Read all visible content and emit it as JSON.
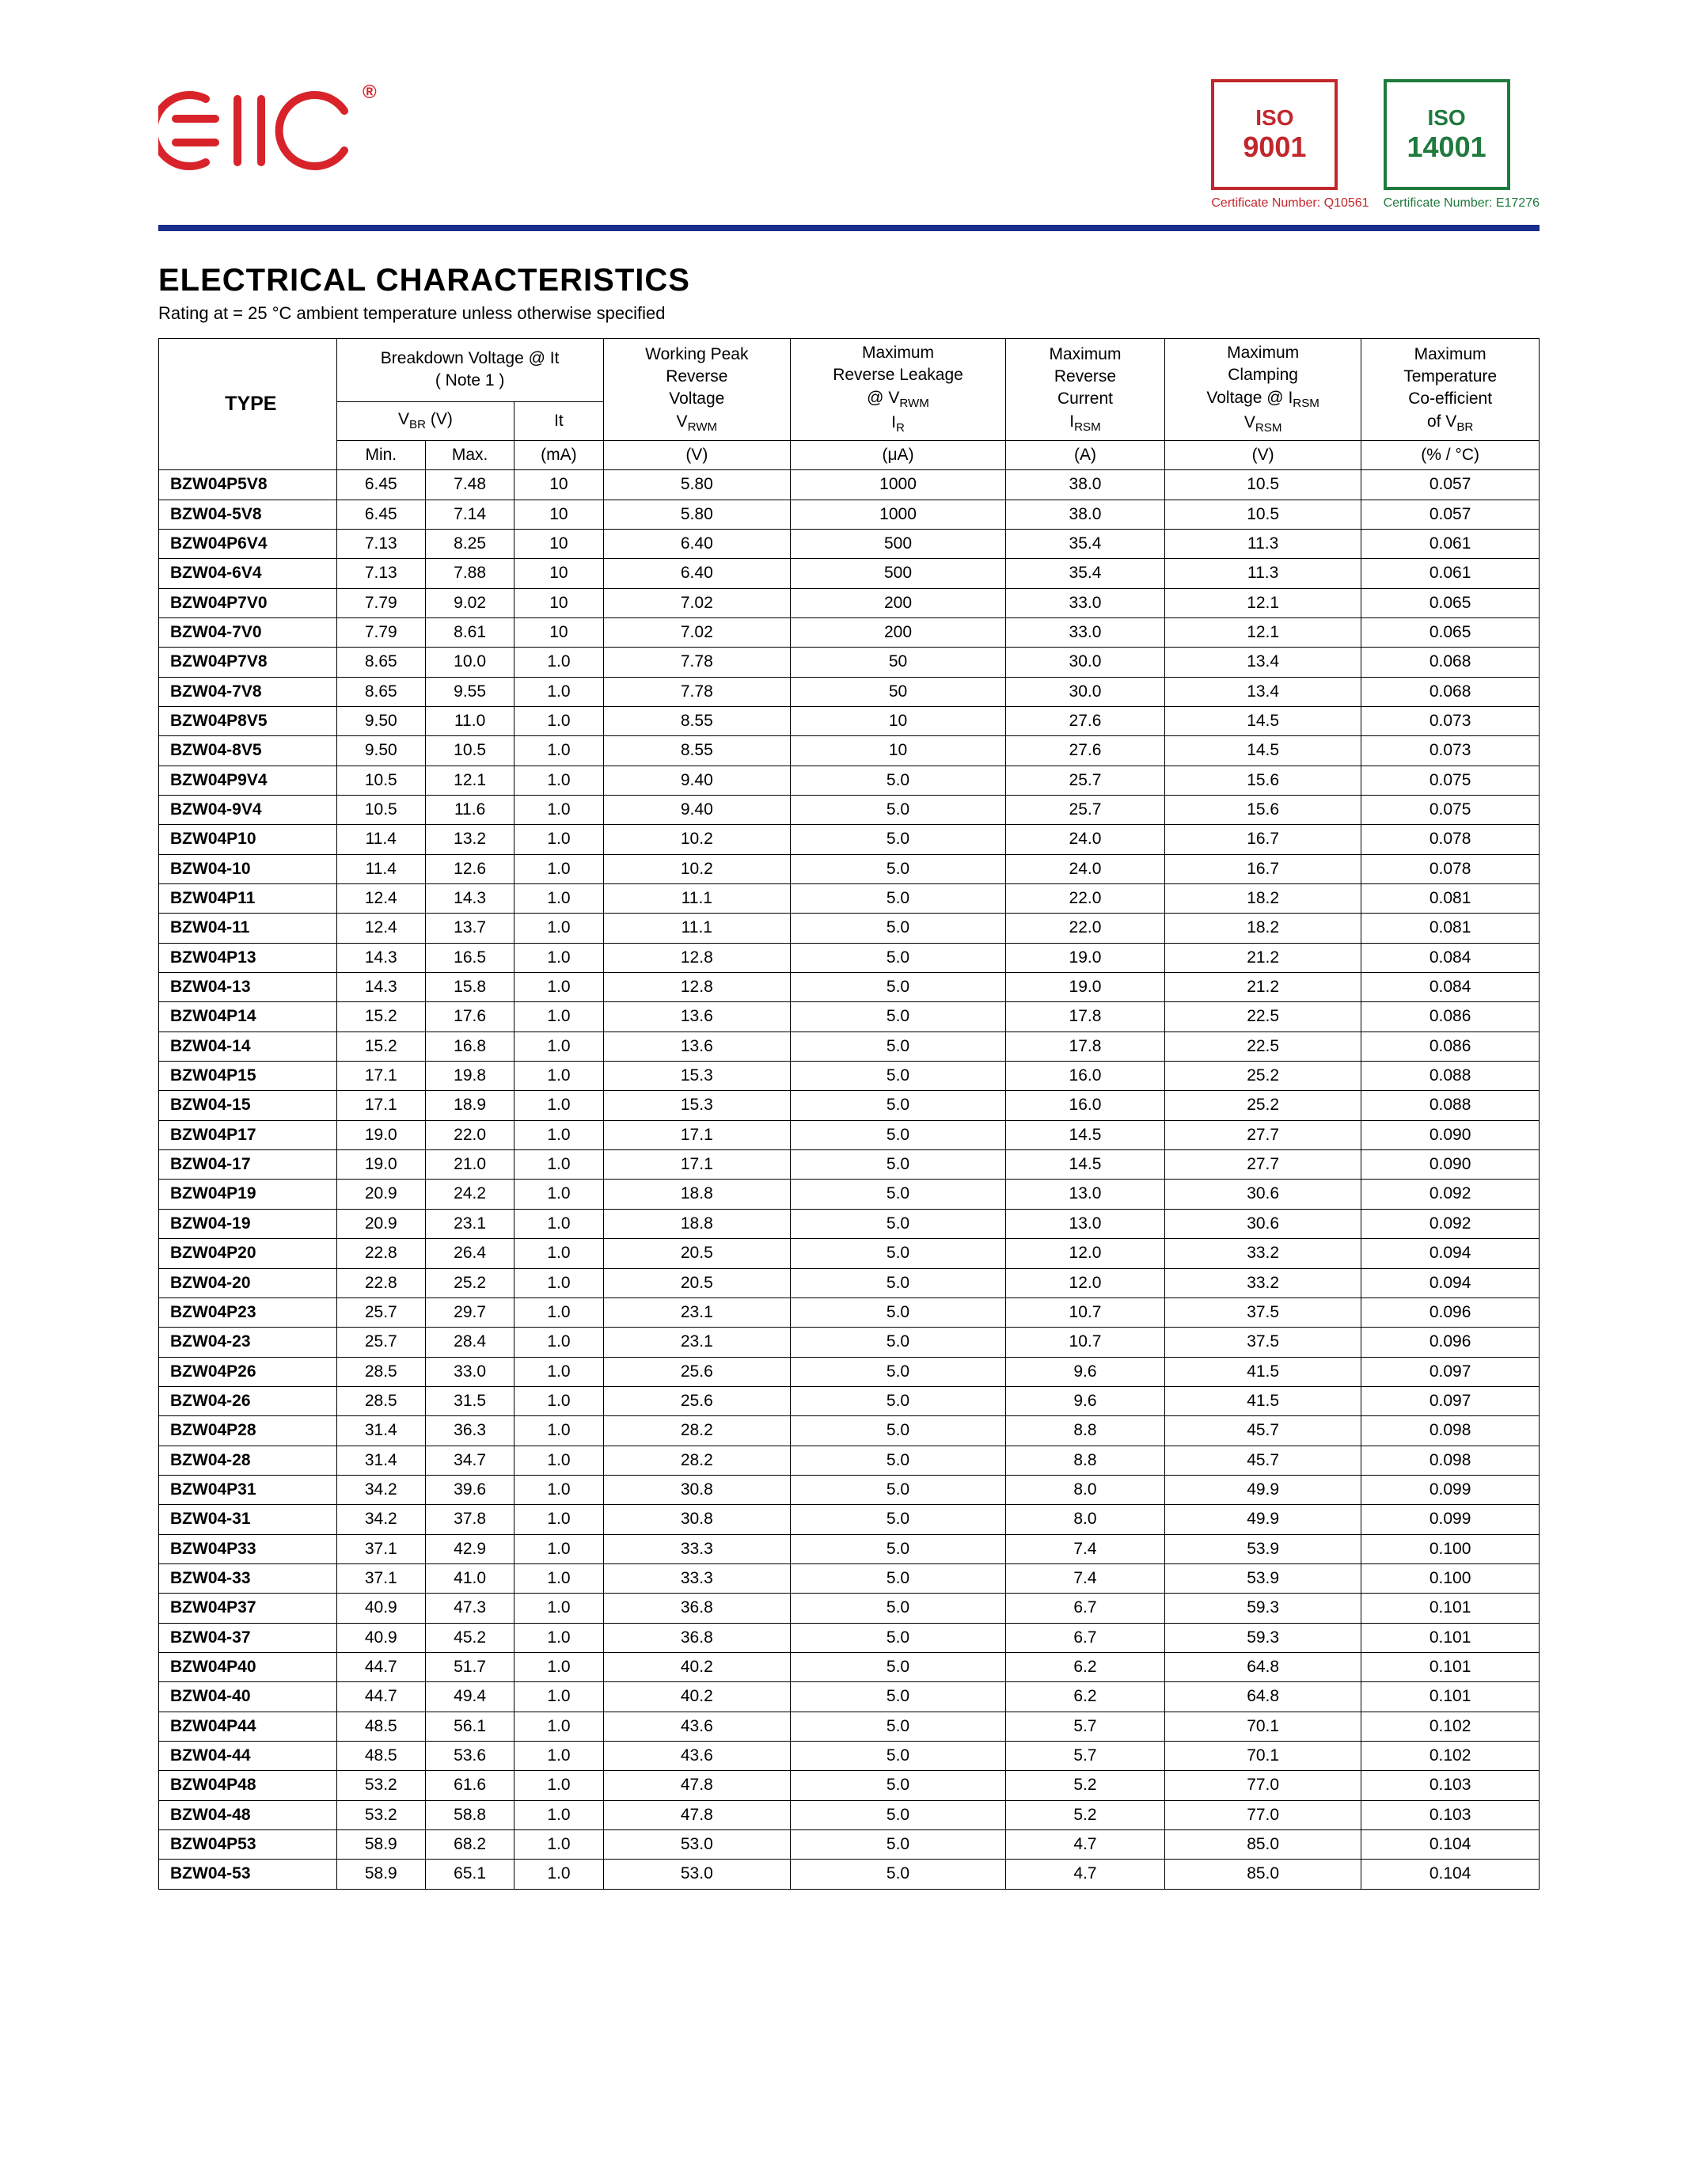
{
  "brand": {
    "name": "EIC",
    "registered": "®",
    "logo_color": "#d8232a"
  },
  "certifications": [
    {
      "top": "ISO",
      "code": "9001",
      "border_color": "#c1272d",
      "text_color": "#c1272d",
      "caption": "Certificate Number: Q10561",
      "caption_color": "#c1272d"
    },
    {
      "top": "ISO",
      "code": "14001",
      "border_color": "#1f7a3e",
      "text_color": "#1f7a3e",
      "caption": "Certificate Number: E17276",
      "caption_color": "#1f7a3e"
    }
  ],
  "divider_color": "#1a2d8a",
  "section": {
    "title": "ELECTRICAL CHARACTERISTICS",
    "subtitle_prefix": "Rating at  = 25 ",
    "subtitle_deg": "°",
    "subtitle_suffix": "C ambient temperature unless otherwise specified"
  },
  "headers": {
    "type": "TYPE",
    "bv_title_1": "Breakdown Voltage @  It",
    "bv_title_2": "( Note 1 )",
    "vbr_label": "V",
    "vbr_sub": "BR",
    "vbr_unit": " (V)",
    "it_label": "It",
    "min": "Min.",
    "max": "Max.",
    "ma": "(mA)",
    "wpv_1": "Working Peak",
    "wpv_2": "Reverse",
    "wpv_3": "Voltage",
    "vrwm_label": "V",
    "vrwm_sub": "RWM",
    "v_unit": "(V)",
    "mrl_1": "Maximum",
    "mrl_2": "Reverse Leakage",
    "mrl_3_prefix": "@ V",
    "mrl_3_sub": "RWM",
    "ir_label": "I",
    "ir_sub": "R",
    "ua_unit": "(μA)",
    "mrc_1": "Maximum",
    "mrc_2": "Reverse",
    "mrc_3": "Current",
    "irsm_label": "I",
    "irsm_sub": "RSM",
    "a_unit": "(A)",
    "mcv_1": "Maximum",
    "mcv_2": "Clamping",
    "mcv_3_prefix": "Voltage @ I",
    "mcv_3_sub": "RSM",
    "vrsm_label": "V",
    "vrsm_sub": "RSM",
    "mtc_1": "Maximum",
    "mtc_2": "Temperature",
    "mtc_3": "Co-efficient",
    "mtc_4_prefix": "of  V",
    "mtc_4_sub": "BR",
    "pct_unit": "(% / °C)"
  },
  "rows": [
    {
      "type": "BZW04P5V8",
      "min": "6.45",
      "max": "7.48",
      "it": "10",
      "vrwm": "5.80",
      "ir": "1000",
      "irsm": "38.0",
      "vrsm": "10.5",
      "tc": "0.057"
    },
    {
      "type": "BZW04-5V8",
      "min": "6.45",
      "max": "7.14",
      "it": "10",
      "vrwm": "5.80",
      "ir": "1000",
      "irsm": "38.0",
      "vrsm": "10.5",
      "tc": "0.057"
    },
    {
      "type": "BZW04P6V4",
      "min": "7.13",
      "max": "8.25",
      "it": "10",
      "vrwm": "6.40",
      "ir": "500",
      "irsm": "35.4",
      "vrsm": "11.3",
      "tc": "0.061"
    },
    {
      "type": "BZW04-6V4",
      "min": "7.13",
      "max": "7.88",
      "it": "10",
      "vrwm": "6.40",
      "ir": "500",
      "irsm": "35.4",
      "vrsm": "11.3",
      "tc": "0.061"
    },
    {
      "type": "BZW04P7V0",
      "min": "7.79",
      "max": "9.02",
      "it": "10",
      "vrwm": "7.02",
      "ir": "200",
      "irsm": "33.0",
      "vrsm": "12.1",
      "tc": "0.065"
    },
    {
      "type": "BZW04-7V0",
      "min": "7.79",
      "max": "8.61",
      "it": "10",
      "vrwm": "7.02",
      "ir": "200",
      "irsm": "33.0",
      "vrsm": "12.1",
      "tc": "0.065"
    },
    {
      "type": "BZW04P7V8",
      "min": "8.65",
      "max": "10.0",
      "it": "1.0",
      "vrwm": "7.78",
      "ir": "50",
      "irsm": "30.0",
      "vrsm": "13.4",
      "tc": "0.068"
    },
    {
      "type": "BZW04-7V8",
      "min": "8.65",
      "max": "9.55",
      "it": "1.0",
      "vrwm": "7.78",
      "ir": "50",
      "irsm": "30.0",
      "vrsm": "13.4",
      "tc": "0.068"
    },
    {
      "type": "BZW04P8V5",
      "min": "9.50",
      "max": "11.0",
      "it": "1.0",
      "vrwm": "8.55",
      "ir": "10",
      "irsm": "27.6",
      "vrsm": "14.5",
      "tc": "0.073"
    },
    {
      "type": "BZW04-8V5",
      "min": "9.50",
      "max": "10.5",
      "it": "1.0",
      "vrwm": "8.55",
      "ir": "10",
      "irsm": "27.6",
      "vrsm": "14.5",
      "tc": "0.073"
    },
    {
      "type": "BZW04P9V4",
      "min": "10.5",
      "max": "12.1",
      "it": "1.0",
      "vrwm": "9.40",
      "ir": "5.0",
      "irsm": "25.7",
      "vrsm": "15.6",
      "tc": "0.075"
    },
    {
      "type": "BZW04-9V4",
      "min": "10.5",
      "max": "11.6",
      "it": "1.0",
      "vrwm": "9.40",
      "ir": "5.0",
      "irsm": "25.7",
      "vrsm": "15.6",
      "tc": "0.075"
    },
    {
      "type": "BZW04P10",
      "min": "11.4",
      "max": "13.2",
      "it": "1.0",
      "vrwm": "10.2",
      "ir": "5.0",
      "irsm": "24.0",
      "vrsm": "16.7",
      "tc": "0.078"
    },
    {
      "type": "BZW04-10",
      "min": "11.4",
      "max": "12.6",
      "it": "1.0",
      "vrwm": "10.2",
      "ir": "5.0",
      "irsm": "24.0",
      "vrsm": "16.7",
      "tc": "0.078"
    },
    {
      "type": "BZW04P11",
      "min": "12.4",
      "max": "14.3",
      "it": "1.0",
      "vrwm": "11.1",
      "ir": "5.0",
      "irsm": "22.0",
      "vrsm": "18.2",
      "tc": "0.081"
    },
    {
      "type": "BZW04-11",
      "min": "12.4",
      "max": "13.7",
      "it": "1.0",
      "vrwm": "11.1",
      "ir": "5.0",
      "irsm": "22.0",
      "vrsm": "18.2",
      "tc": "0.081"
    },
    {
      "type": "BZW04P13",
      "min": "14.3",
      "max": "16.5",
      "it": "1.0",
      "vrwm": "12.8",
      "ir": "5.0",
      "irsm": "19.0",
      "vrsm": "21.2",
      "tc": "0.084"
    },
    {
      "type": "BZW04-13",
      "min": "14.3",
      "max": "15.8",
      "it": "1.0",
      "vrwm": "12.8",
      "ir": "5.0",
      "irsm": "19.0",
      "vrsm": "21.2",
      "tc": "0.084"
    },
    {
      "type": "BZW04P14",
      "min": "15.2",
      "max": "17.6",
      "it": "1.0",
      "vrwm": "13.6",
      "ir": "5.0",
      "irsm": "17.8",
      "vrsm": "22.5",
      "tc": "0.086"
    },
    {
      "type": "BZW04-14",
      "min": "15.2",
      "max": "16.8",
      "it": "1.0",
      "vrwm": "13.6",
      "ir": "5.0",
      "irsm": "17.8",
      "vrsm": "22.5",
      "tc": "0.086"
    },
    {
      "type": "BZW04P15",
      "min": "17.1",
      "max": "19.8",
      "it": "1.0",
      "vrwm": "15.3",
      "ir": "5.0",
      "irsm": "16.0",
      "vrsm": "25.2",
      "tc": "0.088"
    },
    {
      "type": "BZW04-15",
      "min": "17.1",
      "max": "18.9",
      "it": "1.0",
      "vrwm": "15.3",
      "ir": "5.0",
      "irsm": "16.0",
      "vrsm": "25.2",
      "tc": "0.088"
    },
    {
      "type": "BZW04P17",
      "min": "19.0",
      "max": "22.0",
      "it": "1.0",
      "vrwm": "17.1",
      "ir": "5.0",
      "irsm": "14.5",
      "vrsm": "27.7",
      "tc": "0.090"
    },
    {
      "type": "BZW04-17",
      "min": "19.0",
      "max": "21.0",
      "it": "1.0",
      "vrwm": "17.1",
      "ir": "5.0",
      "irsm": "14.5",
      "vrsm": "27.7",
      "tc": "0.090"
    },
    {
      "type": "BZW04P19",
      "min": "20.9",
      "max": "24.2",
      "it": "1.0",
      "vrwm": "18.8",
      "ir": "5.0",
      "irsm": "13.0",
      "vrsm": "30.6",
      "tc": "0.092"
    },
    {
      "type": "BZW04-19",
      "min": "20.9",
      "max": "23.1",
      "it": "1.0",
      "vrwm": "18.8",
      "ir": "5.0",
      "irsm": "13.0",
      "vrsm": "30.6",
      "tc": "0.092"
    },
    {
      "type": "BZW04P20",
      "min": "22.8",
      "max": "26.4",
      "it": "1.0",
      "vrwm": "20.5",
      "ir": "5.0",
      "irsm": "12.0",
      "vrsm": "33.2",
      "tc": "0.094"
    },
    {
      "type": "BZW04-20",
      "min": "22.8",
      "max": "25.2",
      "it": "1.0",
      "vrwm": "20.5",
      "ir": "5.0",
      "irsm": "12.0",
      "vrsm": "33.2",
      "tc": "0.094"
    },
    {
      "type": "BZW04P23",
      "min": "25.7",
      "max": "29.7",
      "it": "1.0",
      "vrwm": "23.1",
      "ir": "5.0",
      "irsm": "10.7",
      "vrsm": "37.5",
      "tc": "0.096"
    },
    {
      "type": "BZW04-23",
      "min": "25.7",
      "max": "28.4",
      "it": "1.0",
      "vrwm": "23.1",
      "ir": "5.0",
      "irsm": "10.7",
      "vrsm": "37.5",
      "tc": "0.096"
    },
    {
      "type": "BZW04P26",
      "min": "28.5",
      "max": "33.0",
      "it": "1.0",
      "vrwm": "25.6",
      "ir": "5.0",
      "irsm": "9.6",
      "vrsm": "41.5",
      "tc": "0.097"
    },
    {
      "type": "BZW04-26",
      "min": "28.5",
      "max": "31.5",
      "it": "1.0",
      "vrwm": "25.6",
      "ir": "5.0",
      "irsm": "9.6",
      "vrsm": "41.5",
      "tc": "0.097"
    },
    {
      "type": "BZW04P28",
      "min": "31.4",
      "max": "36.3",
      "it": "1.0",
      "vrwm": "28.2",
      "ir": "5.0",
      "irsm": "8.8",
      "vrsm": "45.7",
      "tc": "0.098"
    },
    {
      "type": "BZW04-28",
      "min": "31.4",
      "max": "34.7",
      "it": "1.0",
      "vrwm": "28.2",
      "ir": "5.0",
      "irsm": "8.8",
      "vrsm": "45.7",
      "tc": "0.098"
    },
    {
      "type": "BZW04P31",
      "min": "34.2",
      "max": "39.6",
      "it": "1.0",
      "vrwm": "30.8",
      "ir": "5.0",
      "irsm": "8.0",
      "vrsm": "49.9",
      "tc": "0.099"
    },
    {
      "type": "BZW04-31",
      "min": "34.2",
      "max": "37.8",
      "it": "1.0",
      "vrwm": "30.8",
      "ir": "5.0",
      "irsm": "8.0",
      "vrsm": "49.9",
      "tc": "0.099"
    },
    {
      "type": "BZW04P33",
      "min": "37.1",
      "max": "42.9",
      "it": "1.0",
      "vrwm": "33.3",
      "ir": "5.0",
      "irsm": "7.4",
      "vrsm": "53.9",
      "tc": "0.100"
    },
    {
      "type": "BZW04-33",
      "min": "37.1",
      "max": "41.0",
      "it": "1.0",
      "vrwm": "33.3",
      "ir": "5.0",
      "irsm": "7.4",
      "vrsm": "53.9",
      "tc": "0.100"
    },
    {
      "type": "BZW04P37",
      "min": "40.9",
      "max": "47.3",
      "it": "1.0",
      "vrwm": "36.8",
      "ir": "5.0",
      "irsm": "6.7",
      "vrsm": "59.3",
      "tc": "0.101"
    },
    {
      "type": "BZW04-37",
      "min": "40.9",
      "max": "45.2",
      "it": "1.0",
      "vrwm": "36.8",
      "ir": "5.0",
      "irsm": "6.7",
      "vrsm": "59.3",
      "tc": "0.101"
    },
    {
      "type": "BZW04P40",
      "min": "44.7",
      "max": "51.7",
      "it": "1.0",
      "vrwm": "40.2",
      "ir": "5.0",
      "irsm": "6.2",
      "vrsm": "64.8",
      "tc": "0.101"
    },
    {
      "type": "BZW04-40",
      "min": "44.7",
      "max": "49.4",
      "it": "1.0",
      "vrwm": "40.2",
      "ir": "5.0",
      "irsm": "6.2",
      "vrsm": "64.8",
      "tc": "0.101"
    },
    {
      "type": "BZW04P44",
      "min": "48.5",
      "max": "56.1",
      "it": "1.0",
      "vrwm": "43.6",
      "ir": "5.0",
      "irsm": "5.7",
      "vrsm": "70.1",
      "tc": "0.102"
    },
    {
      "type": "BZW04-44",
      "min": "48.5",
      "max": "53.6",
      "it": "1.0",
      "vrwm": "43.6",
      "ir": "5.0",
      "irsm": "5.7",
      "vrsm": "70.1",
      "tc": "0.102"
    },
    {
      "type": "BZW04P48",
      "min": "53.2",
      "max": "61.6",
      "it": "1.0",
      "vrwm": "47.8",
      "ir": "5.0",
      "irsm": "5.2",
      "vrsm": "77.0",
      "tc": "0.103"
    },
    {
      "type": "BZW04-48",
      "min": "53.2",
      "max": "58.8",
      "it": "1.0",
      "vrwm": "47.8",
      "ir": "5.0",
      "irsm": "5.2",
      "vrsm": "77.0",
      "tc": "0.103"
    },
    {
      "type": "BZW04P53",
      "min": "58.9",
      "max": "68.2",
      "it": "1.0",
      "vrwm": "53.0",
      "ir": "5.0",
      "irsm": "4.7",
      "vrsm": "85.0",
      "tc": "0.104"
    },
    {
      "type": "BZW04-53",
      "min": "58.9",
      "max": "65.1",
      "it": "1.0",
      "vrwm": "53.0",
      "ir": "5.0",
      "irsm": "4.7",
      "vrsm": "85.0",
      "tc": "0.104"
    }
  ]
}
